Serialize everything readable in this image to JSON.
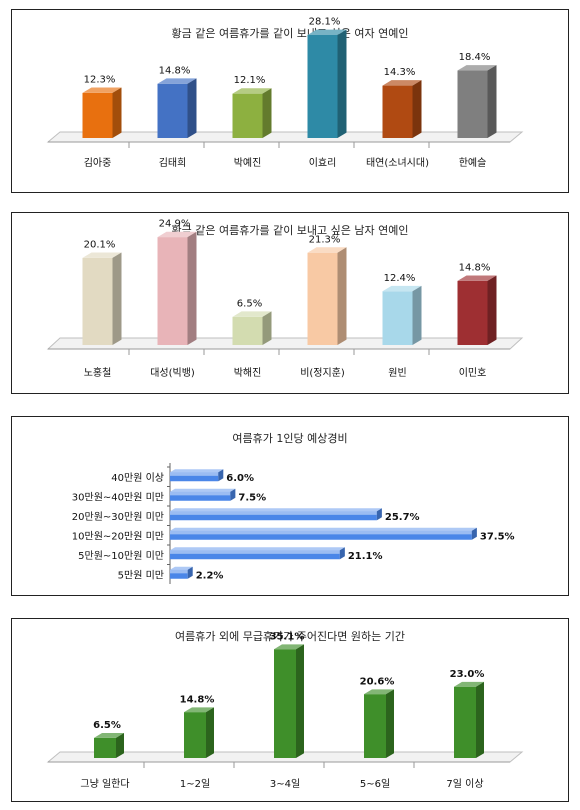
{
  "chart_data": [
    {
      "type": "bar",
      "title": "황금 같은 여름휴가를 같이 보내고 싶은 여자 연예인",
      "categories": [
        "김아중",
        "김태희",
        "박예진",
        "이효리",
        "태연(소녀시대)",
        "한예슬"
      ],
      "values": [
        12.3,
        14.8,
        12.1,
        28.1,
        14.3,
        18.4
      ],
      "value_labels": [
        "12.3%",
        "14.8%",
        "12.1%",
        "28.1%",
        "14.3%",
        "18.4%"
      ],
      "colors": [
        "#e8700f",
        "#4472c4",
        "#8db040",
        "#2e8aa6",
        "#b04a12",
        "#7f7f7f"
      ],
      "ylim": [
        0,
        30
      ],
      "grid": false
    },
    {
      "type": "bar",
      "title": "황금 같은 여름휴가를 같이 보내고 싶은 남자 연예인",
      "categories": [
        "노홍철",
        "대성(빅뱅)",
        "박해진",
        "비(정지훈)",
        "원빈",
        "이민호"
      ],
      "values": [
        20.1,
        24.9,
        6.5,
        21.3,
        12.4,
        14.8
      ],
      "value_labels": [
        "20.1%",
        "24.9%",
        "6.5%",
        "21.3%",
        "12.4%",
        "14.8%"
      ],
      "colors": [
        "#e2dac2",
        "#e8b4b8",
        "#d3dcb0",
        "#f8c9a4",
        "#a8d8ea",
        "#9e2f32"
      ],
      "ylim": [
        0,
        30
      ],
      "grid": false
    },
    {
      "type": "bar",
      "orientation": "horizontal",
      "title": "여름휴가 1인당 예상경비",
      "categories": [
        "40만원 이상",
        "30만원~40만원 미만",
        "20만원~30만원 미만",
        "10만원~20만원 미만",
        "5만원~10만원 미만",
        "5만원 미만"
      ],
      "values": [
        6.0,
        7.5,
        25.7,
        37.5,
        21.1,
        2.2
      ],
      "value_labels": [
        "6.0%",
        "7.5%",
        "25.7%",
        "37.5%",
        "21.1%",
        "2.2%"
      ],
      "colors": [
        "#4a86e8"
      ],
      "xlim": [
        0,
        40
      ],
      "grid": false
    },
    {
      "type": "bar",
      "title": "여름휴가 외에 무급휴가가 주어진다면 원하는 기간",
      "categories": [
        "그냥 일한다",
        "1~2일",
        "3~4일",
        "5~6일",
        "7일 이상"
      ],
      "values": [
        6.5,
        14.8,
        35.1,
        20.6,
        23.0
      ],
      "value_labels": [
        "6.5%",
        "14.8%",
        "35.1%",
        "20.6%",
        "23.0%"
      ],
      "colors": [
        "#3f8f2a"
      ],
      "ylim": [
        0,
        40
      ],
      "grid": false
    }
  ]
}
